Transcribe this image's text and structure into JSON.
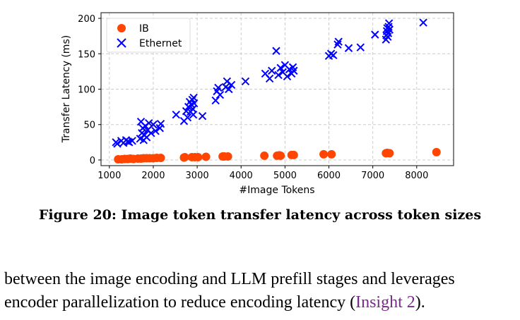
{
  "chart_data": {
    "type": "scatter",
    "xlabel": "#Image Tokens",
    "ylabel": "Transfer Latency (ms)",
    "xlim": [
      810,
      8840
    ],
    "ylim": [
      -8,
      208
    ],
    "xticks": [
      1000,
      2000,
      3000,
      4000,
      5000,
      6000,
      7000,
      8000
    ],
    "yticks": [
      0,
      50,
      100,
      150,
      200
    ],
    "grid": true,
    "legend_position": "top-left",
    "series": [
      {
        "name": "IB",
        "marker": "circle",
        "color": "#ff4500",
        "points": [
          [
            1200,
            1
          ],
          [
            1280,
            1
          ],
          [
            1350,
            1.5
          ],
          [
            1420,
            1.5
          ],
          [
            1480,
            2
          ],
          [
            1550,
            1.5
          ],
          [
            1650,
            2
          ],
          [
            1720,
            2
          ],
          [
            1780,
            2.5
          ],
          [
            1850,
            2.5
          ],
          [
            1920,
            2.5
          ],
          [
            2000,
            2.5
          ],
          [
            2080,
            3
          ],
          [
            2170,
            3
          ],
          [
            2700,
            3.5
          ],
          [
            2720,
            4
          ],
          [
            2880,
            4
          ],
          [
            2950,
            4
          ],
          [
            3020,
            4
          ],
          [
            3200,
            4.5
          ],
          [
            3580,
            5
          ],
          [
            3620,
            5
          ],
          [
            3700,
            5
          ],
          [
            4530,
            6
          ],
          [
            4820,
            6
          ],
          [
            4870,
            6.5
          ],
          [
            4900,
            6
          ],
          [
            5150,
            7
          ],
          [
            5200,
            7
          ],
          [
            5880,
            8
          ],
          [
            6060,
            8
          ],
          [
            7300,
            9.5
          ],
          [
            7330,
            10
          ],
          [
            7380,
            9.5
          ],
          [
            8450,
            11
          ]
        ]
      },
      {
        "name": "Ethernet",
        "marker": "x",
        "color": "#0000ff",
        "points": [
          [
            1150,
            25
          ],
          [
            1180,
            23
          ],
          [
            1270,
            27
          ],
          [
            1320,
            24
          ],
          [
            1380,
            28
          ],
          [
            1420,
            26
          ],
          [
            1450,
            25
          ],
          [
            1520,
            27
          ],
          [
            1700,
            30
          ],
          [
            1720,
            54
          ],
          [
            1740,
            38
          ],
          [
            1760,
            45
          ],
          [
            1780,
            28
          ],
          [
            1800,
            35
          ],
          [
            1820,
            48
          ],
          [
            1850,
            32
          ],
          [
            1870,
            42
          ],
          [
            1900,
            52
          ],
          [
            1950,
            38
          ],
          [
            2000,
            50
          ],
          [
            2050,
            41
          ],
          [
            2150,
            45
          ],
          [
            2170,
            51
          ],
          [
            2520,
            64
          ],
          [
            2700,
            55
          ],
          [
            2750,
            69
          ],
          [
            2780,
            60
          ],
          [
            2800,
            75
          ],
          [
            2830,
            82
          ],
          [
            2850,
            68
          ],
          [
            2870,
            78
          ],
          [
            2890,
            85
          ],
          [
            2900,
            72
          ],
          [
            2910,
            64
          ],
          [
            2920,
            88
          ],
          [
            2930,
            80
          ],
          [
            3120,
            62
          ],
          [
            3420,
            84
          ],
          [
            3450,
            97
          ],
          [
            3480,
            102
          ],
          [
            3520,
            92
          ],
          [
            3650,
            103
          ],
          [
            3680,
            111
          ],
          [
            3720,
            100
          ],
          [
            3780,
            106
          ],
          [
            4100,
            111
          ],
          [
            4550,
            122
          ],
          [
            4650,
            115
          ],
          [
            4700,
            126
          ],
          [
            4800,
            154
          ],
          [
            4850,
            120
          ],
          [
            4900,
            130
          ],
          [
            4950,
            124
          ],
          [
            5000,
            134
          ],
          [
            5050,
            118
          ],
          [
            5100,
            128
          ],
          [
            5150,
            122
          ],
          [
            5180,
            131
          ],
          [
            5200,
            126
          ],
          [
            6000,
            147
          ],
          [
            6050,
            150
          ],
          [
            6100,
            148
          ],
          [
            6200,
            163
          ],
          [
            6220,
            167
          ],
          [
            6450,
            158
          ],
          [
            6720,
            159
          ],
          [
            7050,
            177
          ],
          [
            7300,
            170
          ],
          [
            7310,
            176
          ],
          [
            7320,
            182
          ],
          [
            7330,
            186
          ],
          [
            7340,
            174
          ],
          [
            7350,
            179
          ],
          [
            7360,
            188
          ],
          [
            7370,
            193
          ],
          [
            7380,
            184
          ],
          [
            8150,
            194
          ]
        ]
      }
    ]
  },
  "caption": "Figure 20: Image token transfer latency across token sizes",
  "body": {
    "line1": "between the image encoding and LLM prefill stages and leverages",
    "line2_pre": "encoder parallelization to reduce encoding latency (",
    "line2_link": "Insight 2",
    "line2_post": ")."
  }
}
